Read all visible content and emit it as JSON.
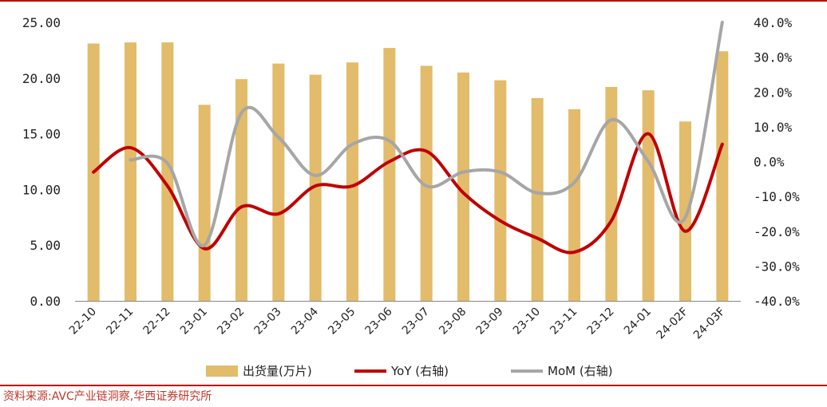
{
  "chart_data": {
    "type": "bar",
    "categories": [
      "22-10",
      "22-11",
      "22-12",
      "23-01",
      "23-02",
      "23-03",
      "23-04",
      "23-05",
      "23-06",
      "23-07",
      "23-08",
      "23-09",
      "23-10",
      "23-11",
      "23-12",
      "24-01",
      "24-02F",
      "24-03F"
    ],
    "series": [
      {
        "name": "出货量(万片)",
        "type": "bar",
        "axis": "left",
        "color": "#e2bb6b",
        "values": [
          23.1,
          23.2,
          23.2,
          17.6,
          19.9,
          21.3,
          20.3,
          21.4,
          22.7,
          21.1,
          20.5,
          19.8,
          18.2,
          17.2,
          19.2,
          18.9,
          16.1,
          22.4
        ]
      },
      {
        "name": "YoY (右轴)",
        "type": "line",
        "axis": "right",
        "color": "#c00000",
        "values": [
          -3,
          4,
          -7,
          -25,
          -13,
          -15,
          -7,
          -7,
          0,
          3,
          -9,
          -17,
          -22,
          -26,
          -17,
          8,
          -20,
          5
        ]
      },
      {
        "name": "MoM (右轴)",
        "type": "line",
        "axis": "right",
        "color": "#a6a6a6",
        "values": [
          null,
          0.5,
          -0.5,
          -24,
          14,
          7,
          -4,
          5,
          6,
          -7,
          -3,
          -3,
          -9,
          -6,
          12,
          0,
          -16,
          40
        ]
      }
    ],
    "y_left": {
      "min": 0,
      "max": 25,
      "step": 5,
      "tick_labels": [
        "0.00",
        "5.00",
        "10.00",
        "15.00",
        "20.00",
        "25.00"
      ]
    },
    "y_right": {
      "min": -40,
      "max": 40,
      "step": 10,
      "tick_labels": [
        "-40.0%",
        "-30.0%",
        "-20.0%",
        "-10.0%",
        "0.0%",
        "10.0%",
        "20.0%",
        "30.0%",
        "40.0%"
      ]
    },
    "legend_position": "bottom",
    "grid": false
  },
  "legend": [
    {
      "label": "出货量(万片)",
      "kind": "bar",
      "color": "#e2bb6b"
    },
    {
      "label": "YoY (右轴)",
      "kind": "line",
      "color": "#c00000"
    },
    {
      "label": "MoM (右轴)",
      "kind": "line",
      "color": "#a6a6a6"
    }
  ],
  "source": "资料来源:AVC产业链洞察,华西证券研究所"
}
